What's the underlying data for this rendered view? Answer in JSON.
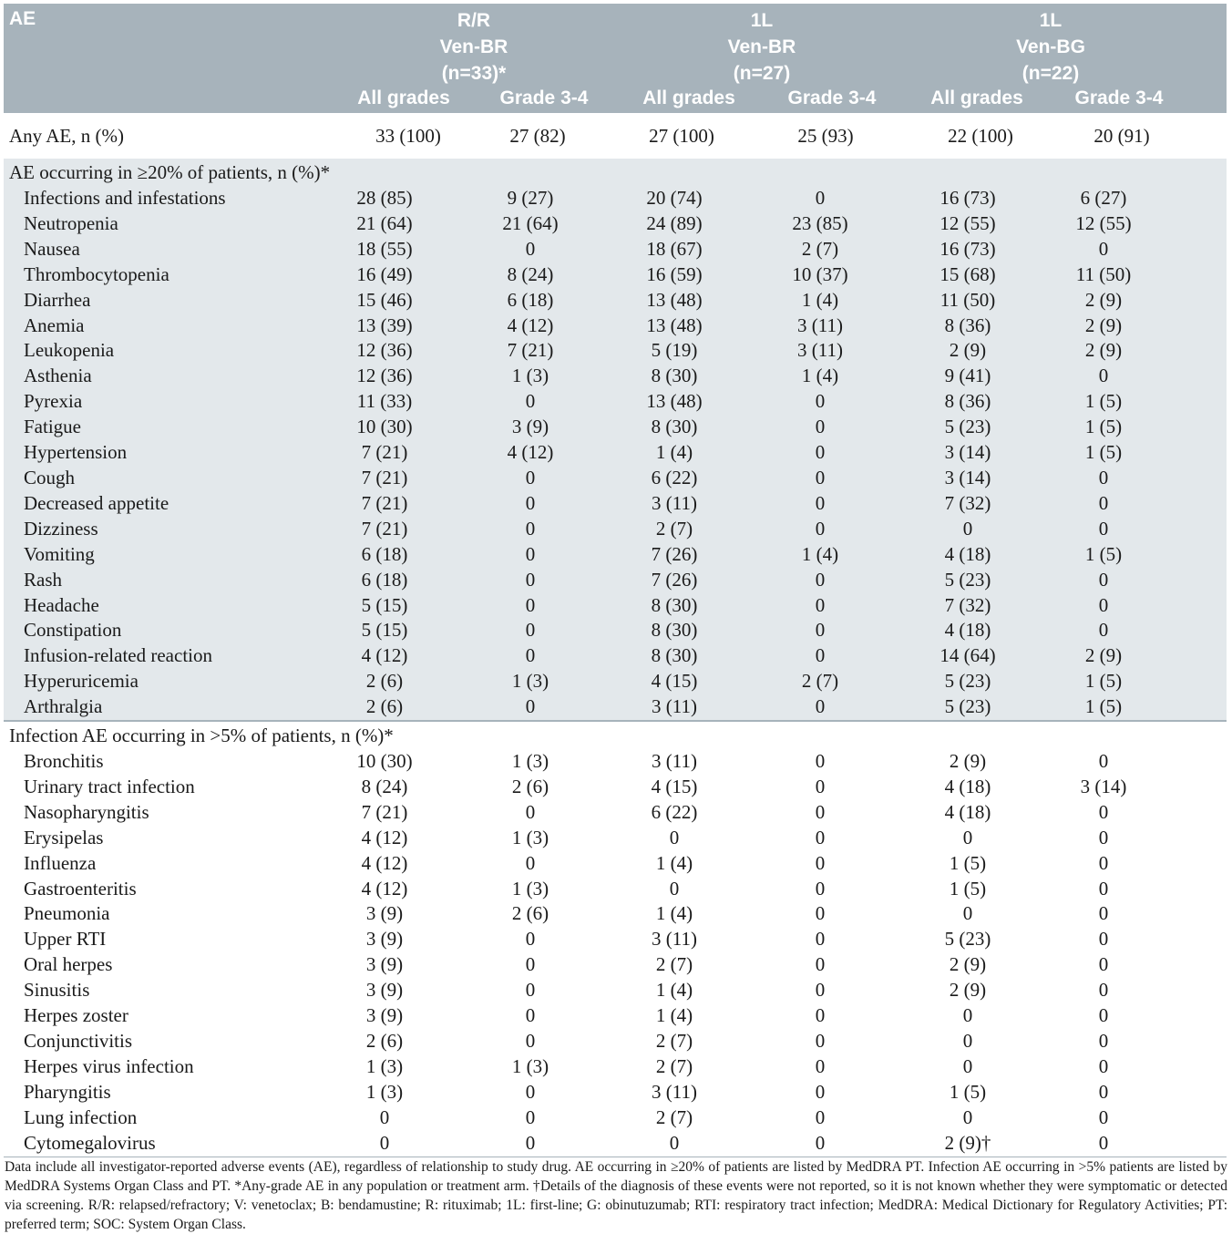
{
  "header": {
    "ae": "AE",
    "arms": [
      {
        "line1": "R/R",
        "line2": "Ven-BR",
        "line3": "(n=33)*"
      },
      {
        "line1": "1L",
        "line2": "Ven-BR",
        "line3": "(n=27)"
      },
      {
        "line1": "1L",
        "line2": "Ven-BG",
        "line3": "(n=22)"
      }
    ],
    "sub": [
      "All grades",
      "Grade 3-4",
      "All grades",
      "Grade 3-4",
      "All grades",
      "Grade 3-4"
    ]
  },
  "any_ae": {
    "label": "Any AE, n (%)",
    "values": [
      "33 (100)",
      "27 (82)",
      "27 (100)",
      "25 (93)",
      "22 (100)",
      "20 (91)"
    ]
  },
  "section1": {
    "title": "AE occurring in ≥20% of patients, n (%)*",
    "rows": [
      {
        "label": "Infections and infestations",
        "values": [
          "28 (85)",
          "9 (27)",
          "20 (74)",
          "0",
          "16 (73)",
          "6 (27)"
        ]
      },
      {
        "label": "Neutropenia",
        "values": [
          "21 (64)",
          "21 (64)",
          "24 (89)",
          "23 (85)",
          "12 (55)",
          "12 (55)"
        ]
      },
      {
        "label": "Nausea",
        "values": [
          "18 (55)",
          "0",
          "18 (67)",
          "2 (7)",
          "16 (73)",
          "0"
        ]
      },
      {
        "label": "Thrombocytopenia",
        "values": [
          "16 (49)",
          "8 (24)",
          "16 (59)",
          "10 (37)",
          "15 (68)",
          "11 (50)"
        ]
      },
      {
        "label": "Diarrhea",
        "values": [
          "15 (46)",
          "6 (18)",
          "13 (48)",
          "1 (4)",
          "11 (50)",
          "2 (9)"
        ]
      },
      {
        "label": "Anemia",
        "values": [
          "13 (39)",
          "4 (12)",
          "13 (48)",
          "3 (11)",
          "8 (36)",
          "2 (9)"
        ]
      },
      {
        "label": "Leukopenia",
        "values": [
          "12 (36)",
          "7 (21)",
          "5 (19)",
          "3 (11)",
          "2 (9)",
          "2 (9)"
        ]
      },
      {
        "label": "Asthenia",
        "values": [
          "12 (36)",
          "1 (3)",
          "8 (30)",
          "1 (4)",
          "9 (41)",
          "0"
        ]
      },
      {
        "label": "Pyrexia",
        "values": [
          "11 (33)",
          "0",
          "13 (48)",
          "0",
          "8 (36)",
          "1 (5)"
        ]
      },
      {
        "label": "Fatigue",
        "values": [
          "10 (30)",
          "3 (9)",
          "8 (30)",
          "0",
          "5 (23)",
          "1 (5)"
        ]
      },
      {
        "label": "Hypertension",
        "values": [
          "7 (21)",
          "4 (12)",
          "1 (4)",
          "0",
          "3 (14)",
          "1 (5)"
        ]
      },
      {
        "label": "Cough",
        "values": [
          "7 (21)",
          "0",
          "6 (22)",
          "0",
          "3 (14)",
          "0"
        ]
      },
      {
        "label": "Decreased appetite",
        "values": [
          "7 (21)",
          "0",
          "3 (11)",
          "0",
          "7 (32)",
          "0"
        ]
      },
      {
        "label": "Dizziness",
        "values": [
          "7 (21)",
          "0",
          "2 (7)",
          "0",
          "0",
          "0"
        ]
      },
      {
        "label": "Vomiting",
        "values": [
          "6 (18)",
          "0",
          "7 (26)",
          "1 (4)",
          "4 (18)",
          "1 (5)"
        ]
      },
      {
        "label": "Rash",
        "values": [
          "6 (18)",
          "0",
          "7 (26)",
          "0",
          "5 (23)",
          "0"
        ]
      },
      {
        "label": "Headache",
        "values": [
          "5 (15)",
          "0",
          "8 (30)",
          "0",
          "7 (32)",
          "0"
        ]
      },
      {
        "label": "Constipation",
        "values": [
          "5 (15)",
          "0",
          "8 (30)",
          "0",
          "4 (18)",
          "0"
        ]
      },
      {
        "label": "Infusion-related reaction",
        "values": [
          "4 (12)",
          "0",
          "8 (30)",
          "0",
          "14 (64)",
          "2 (9)"
        ]
      },
      {
        "label": "Hyperuricemia",
        "values": [
          "2 (6)",
          "1 (3)",
          "4 (15)",
          "2 (7)",
          "5 (23)",
          "1 (5)"
        ]
      },
      {
        "label": "Arthralgia",
        "values": [
          "2 (6)",
          "0",
          "3 (11)",
          "0",
          "5 (23)",
          "1 (5)"
        ]
      }
    ]
  },
  "section2": {
    "title": "Infection AE occurring in >5% of patients, n (%)*",
    "rows": [
      {
        "label": "Bronchitis",
        "values": [
          "10 (30)",
          "1 (3)",
          "3 (11)",
          "0",
          "2 (9)",
          "0"
        ]
      },
      {
        "label": "Urinary tract infection",
        "values": [
          "8 (24)",
          "2 (6)",
          "4 (15)",
          "0",
          "4 (18)",
          "3 (14)"
        ]
      },
      {
        "label": "Nasopharyngitis",
        "values": [
          "7 (21)",
          "0",
          "6 (22)",
          "0",
          "4 (18)",
          "0"
        ]
      },
      {
        "label": "Erysipelas",
        "values": [
          "4 (12)",
          "1 (3)",
          "0",
          "0",
          "0",
          "0"
        ]
      },
      {
        "label": "Influenza",
        "values": [
          "4 (12)",
          "0",
          "1 (4)",
          "0",
          "1 (5)",
          "0"
        ]
      },
      {
        "label": "Gastroenteritis",
        "values": [
          "4 (12)",
          "1 (3)",
          "0",
          "0",
          "1 (5)",
          "0"
        ]
      },
      {
        "label": "Pneumonia",
        "values": [
          "3 (9)",
          "2 (6)",
          "1 (4)",
          "0",
          "0",
          "0"
        ]
      },
      {
        "label": "Upper RTI",
        "values": [
          "3 (9)",
          "0",
          "3 (11)",
          "0",
          "5 (23)",
          "0"
        ]
      },
      {
        "label": "Oral herpes",
        "values": [
          "3 (9)",
          "0",
          "2 (7)",
          "0",
          "2 (9)",
          "0"
        ]
      },
      {
        "label": "Sinusitis",
        "values": [
          "3 (9)",
          "0",
          "1 (4)",
          "0",
          "2 (9)",
          "0"
        ]
      },
      {
        "label": "Herpes zoster",
        "values": [
          "3 (9)",
          "0",
          "1 (4)",
          "0",
          "0",
          "0"
        ]
      },
      {
        "label": "Conjunctivitis",
        "values": [
          "2 (6)",
          "0",
          "2 (7)",
          "0",
          "0",
          "0"
        ]
      },
      {
        "label": "Herpes virus infection",
        "values": [
          "1 (3)",
          "1 (3)",
          "2 (7)",
          "0",
          "0",
          "0"
        ]
      },
      {
        "label": "Pharyngitis",
        "values": [
          "1 (3)",
          "0",
          "3 (11)",
          "0",
          "1 (5)",
          "0"
        ]
      },
      {
        "label": "Lung infection",
        "values": [
          "0",
          "0",
          "2 (7)",
          "0",
          "0",
          "0"
        ]
      },
      {
        "label": "Cytomegalovirus",
        "values": [
          "0",
          "0",
          "0",
          "0",
          "2 (9)†",
          "0"
        ]
      }
    ]
  },
  "footnote": "Data include all investigator-reported adverse events (AE), regardless of relationship to study drug. AE occurring in ≥20% of patients are listed by MedDRA PT. Infection AE occurring in >5% patients are listed by MedDRA Systems Organ Class and PT. *Any-grade AE in any population or treatment arm. †Details of the diagnosis of these events were not reported, so it is not known whether they were symptomatic or detected via screening. R/R: relapsed/refractory; V: venetoclax; B: bendamustine; R: rituximab; 1L: first-line; G: obinutuzumab; RTI: respiratory tract infection; MedDRA: Medical Dictionary for Regulatory Activities; PT: preferred term; SOC: System Organ Class."
}
